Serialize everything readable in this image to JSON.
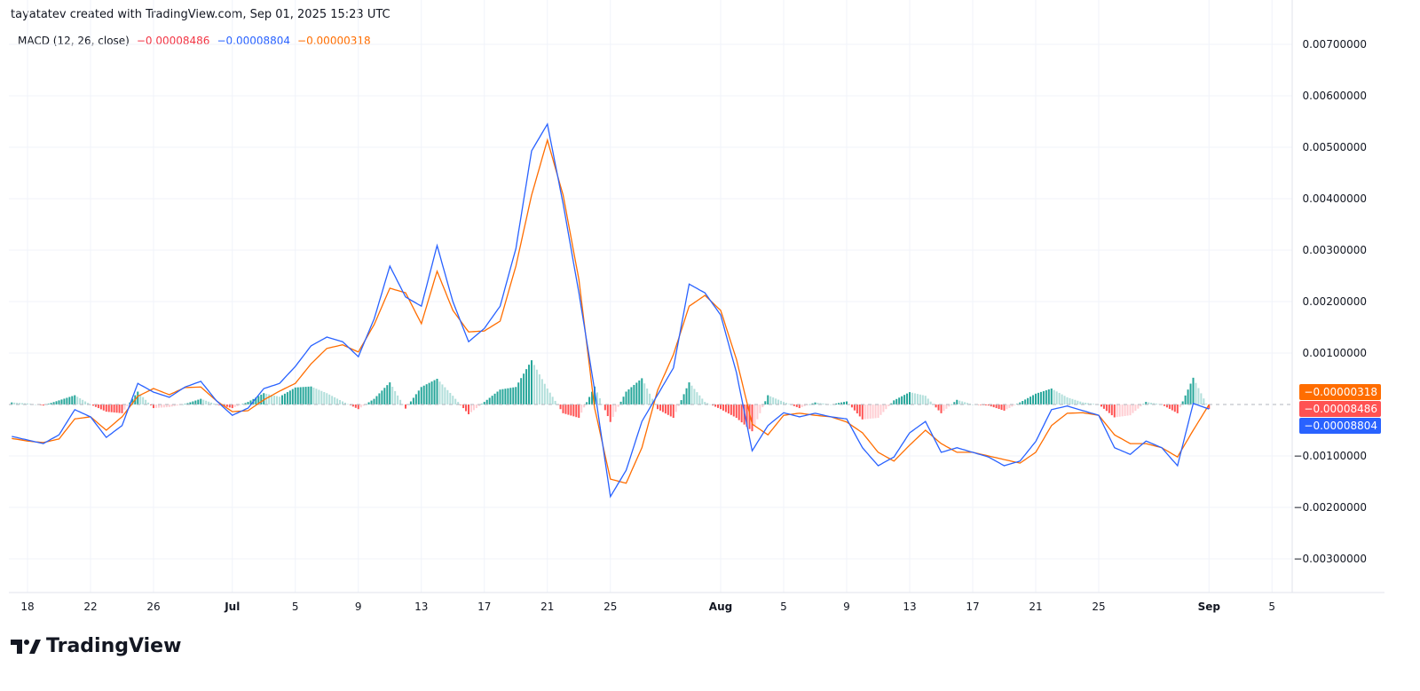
{
  "attribution": "tayatatev created with TradingView.com, Sep 01, 2025 15:23 UTC",
  "legend": {
    "indicator": "MACD (12, 26, close)",
    "histogram_value": "−0.00008486",
    "macd_value": "−0.00008804",
    "signal_value": "−0.00000318"
  },
  "price_labels": {
    "signal": "−0.00000318",
    "histogram": "−0.00008486",
    "macd": "−0.00008804"
  },
  "logo_text": "TradingView",
  "colors": {
    "macd": "#2962ff",
    "signal": "#ff6d00",
    "hist_up_strong": "#26a69a",
    "hist_up_weak": "#b2dfdb",
    "hist_down_strong": "#ff5252",
    "hist_down_weak": "#ffcdd2",
    "grid": "#f0f3fa"
  },
  "chart_data": {
    "type": "line",
    "title": "MACD (12, 26, close)",
    "ylim": [
      -0.0035,
      0.0074
    ],
    "grid": true,
    "y_ticks": [
      "0.00700000",
      "0.00600000",
      "0.00500000",
      "0.00400000",
      "0.00300000",
      "0.00200000",
      "0.00100000",
      "−0.00100000",
      "−0.00200000",
      "−0.00300000"
    ],
    "y_tick_values": [
      0.007,
      0.006,
      0.005,
      0.004,
      0.003,
      0.002,
      0.001,
      -0.001,
      -0.002,
      -0.003
    ],
    "x_ticks": [
      {
        "label": "18",
        "date": "2025-06-18"
      },
      {
        "label": "22",
        "date": "2025-06-22"
      },
      {
        "label": "26",
        "date": "2025-06-26"
      },
      {
        "label": "Jul",
        "date": "2025-07-01",
        "bold": true
      },
      {
        "label": "5",
        "date": "2025-07-05"
      },
      {
        "label": "9",
        "date": "2025-07-09"
      },
      {
        "label": "13",
        "date": "2025-07-13"
      },
      {
        "label": "17",
        "date": "2025-07-17"
      },
      {
        "label": "21",
        "date": "2025-07-21"
      },
      {
        "label": "25",
        "date": "2025-07-25"
      },
      {
        "label": "Aug",
        "date": "2025-08-01",
        "bold": true
      },
      {
        "label": "5",
        "date": "2025-08-05"
      },
      {
        "label": "9",
        "date": "2025-08-09"
      },
      {
        "label": "13",
        "date": "2025-08-13"
      },
      {
        "label": "17",
        "date": "2025-08-17"
      },
      {
        "label": "21",
        "date": "2025-08-21"
      },
      {
        "label": "25",
        "date": "2025-08-25"
      },
      {
        "label": "Sep",
        "date": "2025-09-01",
        "bold": true
      },
      {
        "label": "5",
        "date": "2025-09-05"
      }
    ],
    "start_date": "2025-06-17",
    "macd": [
      -0.00062,
      -0.00069,
      -0.00076,
      -0.00059,
      -0.0001,
      -0.00024,
      -0.00064,
      -0.00041,
      0.00041,
      0.00024,
      0.00014,
      0.00034,
      0.00045,
      7e-05,
      -0.00021,
      -7e-05,
      0.00031,
      0.00041,
      0.00074,
      0.00114,
      0.00131,
      0.00122,
      0.00093,
      0.00166,
      0.00269,
      0.00209,
      0.00191,
      0.00309,
      0.002,
      0.00122,
      0.00148,
      0.00191,
      0.00303,
      0.00493,
      0.00545,
      0.0039,
      0.00217,
      0.00028,
      -0.00179,
      -0.00128,
      -0.00033,
      0.00019,
      0.00071,
      0.00234,
      0.00217,
      0.00174,
      0.00062,
      -0.0009,
      -0.00041,
      -0.00016,
      -0.00024,
      -0.00017,
      -0.00024,
      -0.00028,
      -0.00084,
      -0.00119,
      -0.00102,
      -0.00055,
      -0.00033,
      -0.00093,
      -0.00084,
      -0.00093,
      -0.00102,
      -0.00119,
      -0.0011,
      -0.00072,
      -0.0001,
      -3e-05,
      -0.00012,
      -0.00021,
      -0.00084,
      -0.00097,
      -0.00071,
      -0.00084,
      -0.00119,
      2e-05,
      -8.804e-05
    ],
    "signal": [
      -0.00066,
      -0.00071,
      -0.00074,
      -0.00067,
      -0.00028,
      -0.00024,
      -0.0005,
      -0.00024,
      0.00016,
      0.00031,
      0.00019,
      0.00033,
      0.00034,
      7e-05,
      -0.00014,
      -0.00012,
      9e-05,
      0.00026,
      0.00041,
      0.00079,
      0.00109,
      0.00116,
      0.00102,
      0.00155,
      0.00226,
      0.00217,
      0.00157,
      0.00259,
      0.00183,
      0.00141,
      0.00143,
      0.00162,
      0.00269,
      0.00407,
      0.00514,
      0.00407,
      0.00243,
      -7e-05,
      -0.00145,
      -0.00153,
      -0.00084,
      0.00028,
      0.00097,
      0.00191,
      0.00212,
      0.00183,
      0.00088,
      -0.00038,
      -0.00059,
      -0.00021,
      -0.00017,
      -0.00021,
      -0.00024,
      -0.00034,
      -0.00055,
      -0.00093,
      -0.0011,
      -0.00079,
      -0.0005,
      -0.00076,
      -0.00093,
      -0.00093,
      -0.001,
      -0.00107,
      -0.00114,
      -0.00093,
      -0.00041,
      -0.00017,
      -0.00016,
      -0.00021,
      -0.00059,
      -0.00076,
      -0.00076,
      -0.00084,
      -0.00102,
      -0.0005,
      -3.18e-06
    ]
  }
}
